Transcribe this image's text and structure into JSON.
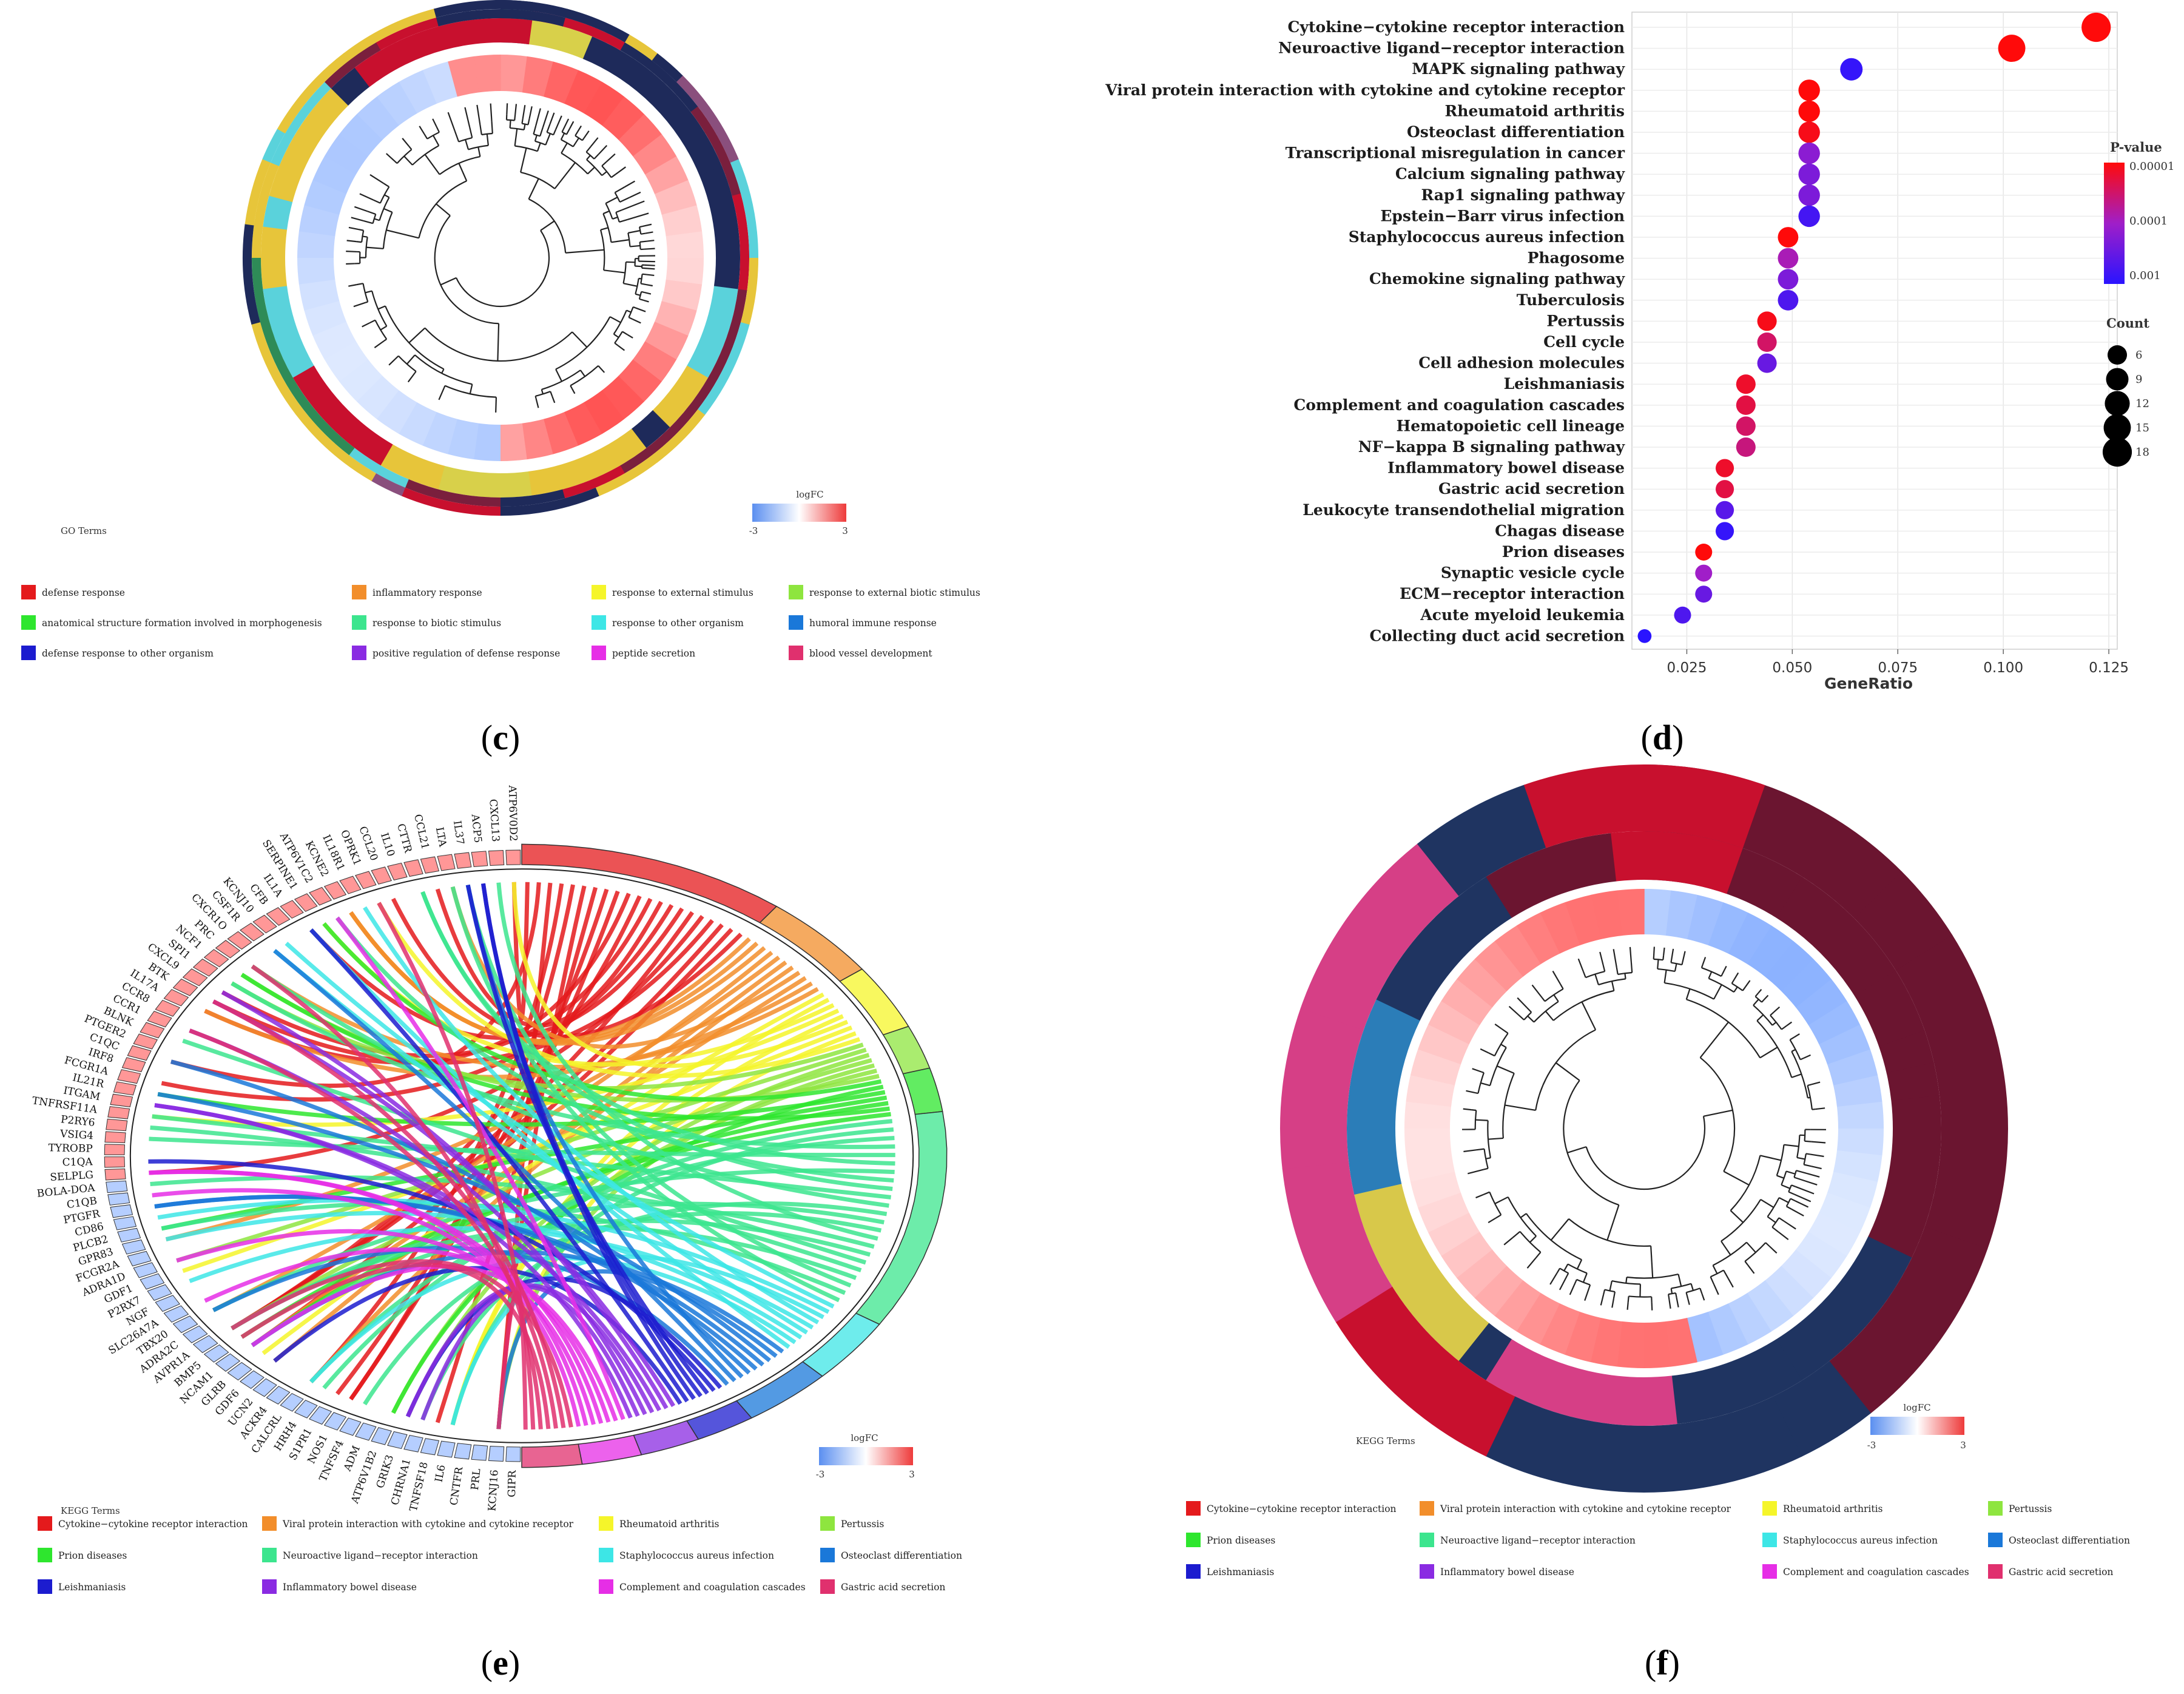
{
  "panels": {
    "c": {
      "label_open": "(",
      "letter": "c",
      "label_close": ")"
    },
    "d": {
      "label_open": "(",
      "letter": "d",
      "label_close": ")"
    },
    "e": {
      "label_open": "(",
      "letter": "e",
      "label_close": ")"
    },
    "f": {
      "label_open": "(",
      "letter": "f",
      "label_close": ")"
    }
  },
  "panel_c": {
    "terms_title": "GO Terms",
    "logfc_title": "logFC",
    "logfc_min": "-3",
    "logfc_max": "3",
    "legend": [
      {
        "label": "defense response",
        "color": "#e41a1c"
      },
      {
        "label": "inflammatory response",
        "color": "#f28e2b"
      },
      {
        "label": "response to external stimulus",
        "color": "#f5f52a"
      },
      {
        "label": "response to external biotic stimulus",
        "color": "#8ee53f"
      },
      {
        "label": "anatomical structure formation involved in morphogenesis",
        "color": "#2ee62e"
      },
      {
        "label": "response to biotic stimulus",
        "color": "#3ce58e"
      },
      {
        "label": "response to other organism",
        "color": "#3de6e6"
      },
      {
        "label": "humoral immune response",
        "color": "#1a78d9"
      },
      {
        "label": "defense response to other organism",
        "color": "#1c1ccf"
      },
      {
        "label": "positive regulation of defense response",
        "color": "#8a2be2"
      },
      {
        "label": "peptide secretion",
        "color": "#e62ee6"
      },
      {
        "label": "blood vessel development",
        "color": "#e0306e"
      }
    ]
  },
  "panel_e": {
    "terms_title": "KEGG Terms",
    "logfc_title": "logFC",
    "logfc_min": "-3",
    "logfc_max": "3",
    "genes": [
      "ATP6V0D2",
      "CXCL13",
      "ACP5",
      "IL37",
      "LTA",
      "CCL21",
      "CTTR",
      "IL10",
      "CCL20",
      "OPRK1",
      "IL18R1",
      "KCNE2",
      "ATP6V1C2",
      "SERPINE1",
      "IL1A",
      "CFB",
      "KCNJ10",
      "CSF1R",
      "CXCR1O",
      "PRC",
      "NCF1",
      "SPI1",
      "CXCL9",
      "BTK",
      "IL17A",
      "CCR8",
      "CCR1",
      "BLNK",
      "PTGER2",
      "C1QC",
      "IRF8",
      "FCGR1A",
      "IL21R",
      "ITGAM",
      "TNFRSF11A",
      "P2RY6",
      "VSIG4",
      "TYROBP",
      "C1QA",
      "SELPLG",
      "BOLA-DOA",
      "C1QB",
      "PTGFR",
      "CD86",
      "PLCB2",
      "GPR83",
      "FCGR2A",
      "ADRA1D",
      "GDF1",
      "P2RX7",
      "NGF",
      "SLC26A7A",
      "TBX20",
      "ADRA2C",
      "AVPR1A",
      "BMP5",
      "NCAM1",
      "GLRB",
      "GDF6",
      "UCN2",
      "ACKR4",
      "CALCRL",
      "HRH4",
      "S1PR1",
      "NOS1",
      "TNFSF4",
      "ADM",
      "ATP6V1B2",
      "GRIK3",
      "CHRNA1",
      "TNFSF18",
      "IL6",
      "CNTFR",
      "PRL",
      "KCNJ16",
      "GIPR"
    ],
    "legend": [
      {
        "label": "Cytokine−cytokine receptor interaction",
        "color": "#e41a1c"
      },
      {
        "label": "Viral protein interaction with cytokine and cytokine receptor",
        "color": "#f28e2b"
      },
      {
        "label": "Rheumatoid arthritis",
        "color": "#f5f52a"
      },
      {
        "label": "Pertussis",
        "color": "#8ee53f"
      },
      {
        "label": "Prion diseases",
        "color": "#2ee62e"
      },
      {
        "label": "Neuroactive ligand−receptor interaction",
        "color": "#3ce58e"
      },
      {
        "label": "Staphylococcus aureus infection",
        "color": "#3de6e6"
      },
      {
        "label": "Osteoclast differentiation",
        "color": "#1a78d9"
      },
      {
        "label": "Leishmaniasis",
        "color": "#1c1ccf"
      },
      {
        "label": "Inflammatory bowel disease",
        "color": "#8a2be2"
      },
      {
        "label": "Complement and coagulation cascades",
        "color": "#e62ee6"
      },
      {
        "label": "Gastric acid secretion",
        "color": "#e0306e"
      }
    ]
  },
  "panel_f": {
    "terms_title": "KEGG Terms",
    "logfc_title": "logFC",
    "logfc_min": "-3",
    "logfc_max": "3",
    "legend": [
      {
        "label": "Cytokine−cytokine receptor interaction",
        "color": "#e41a1c"
      },
      {
        "label": "Viral protein interaction with cytokine and cytokine receptor",
        "color": "#f28e2b"
      },
      {
        "label": "Rheumatoid arthritis",
        "color": "#f5f52a"
      },
      {
        "label": "Pertussis",
        "color": "#8ee53f"
      },
      {
        "label": "Prion diseases",
        "color": "#2ee62e"
      },
      {
        "label": "Neuroactive ligand−receptor interaction",
        "color": "#3ce58e"
      },
      {
        "label": "Staphylococcus aureus infection",
        "color": "#3de6e6"
      },
      {
        "label": "Osteoclast differentiation",
        "color": "#1a78d9"
      },
      {
        "label": "Leishmaniasis",
        "color": "#1c1ccf"
      },
      {
        "label": "Inflammatory bowel disease",
        "color": "#8a2be2"
      },
      {
        "label": "Complement and coagulation cascades",
        "color": "#e62ee6"
      },
      {
        "label": "Gastric acid secretion",
        "color": "#e0306e"
      }
    ]
  },
  "chart_data": [
    {
      "type": "scatter",
      "panel": "d",
      "title": "",
      "xlabel": "GeneRatio",
      "ylabel": "",
      "xlim": [
        0.012,
        0.127
      ],
      "xticks": [
        "0.025",
        "0.050",
        "0.075",
        "0.100",
        "0.125"
      ],
      "xtick_values": [
        0.025,
        0.05,
        0.075,
        0.1,
        0.125
      ],
      "color_legend_title": "P-value",
      "color_legend_ticks": [
        "0.00001",
        "0.0001",
        "0.001"
      ],
      "size_legend_title": "Count",
      "size_legend_ticks": [
        "6",
        "9",
        "12",
        "15",
        "18"
      ],
      "size_legend_values": [
        6,
        9,
        12,
        15,
        18
      ],
      "points": [
        {
          "term": "Cytokine−cytokine receptor interaction",
          "gene_ratio": 0.122,
          "count": 18,
          "pvalue": 5e-06
        },
        {
          "term": "Neuroactive ligand−receptor interaction",
          "gene_ratio": 0.102,
          "count": 15,
          "pvalue": 8e-06
        },
        {
          "term": "MAPK signaling pathway",
          "gene_ratio": 0.064,
          "count": 9,
          "pvalue": 0.0008
        },
        {
          "term": "Viral protein interaction with cytokine and cytokine receptor",
          "gene_ratio": 0.054,
          "count": 8,
          "pvalue": 1e-05
        },
        {
          "term": "Rheumatoid arthritis",
          "gene_ratio": 0.054,
          "count": 8,
          "pvalue": 1e-05
        },
        {
          "term": "Osteoclast differentiation",
          "gene_ratio": 0.054,
          "count": 8,
          "pvalue": 1.2e-05
        },
        {
          "term": "Transcriptional misregulation in cancer",
          "gene_ratio": 0.054,
          "count": 8,
          "pvalue": 0.00015
        },
        {
          "term": "Calcium signaling pathway",
          "gene_ratio": 0.054,
          "count": 8,
          "pvalue": 0.0002
        },
        {
          "term": "Rap1 signaling pathway",
          "gene_ratio": 0.054,
          "count": 8,
          "pvalue": 0.0002
        },
        {
          "term": "Epstein−Barr virus infection",
          "gene_ratio": 0.054,
          "count": 8,
          "pvalue": 0.0006
        },
        {
          "term": "Staphylococcus aureus infection",
          "gene_ratio": 0.049,
          "count": 7,
          "pvalue": 1e-05
        },
        {
          "term": "Phagosome",
          "gene_ratio": 0.049,
          "count": 7,
          "pvalue": 8e-05
        },
        {
          "term": "Chemokine signaling pathway",
          "gene_ratio": 0.049,
          "count": 7,
          "pvalue": 0.0002
        },
        {
          "term": "Tuberculosis",
          "gene_ratio": 0.049,
          "count": 7,
          "pvalue": 0.0005
        },
        {
          "term": "Pertussis",
          "gene_ratio": 0.044,
          "count": 6,
          "pvalue": 1.2e-05
        },
        {
          "term": "Cell cycle",
          "gene_ratio": 0.044,
          "count": 6,
          "pvalue": 3e-05
        },
        {
          "term": "Cell adhesion molecules",
          "gene_ratio": 0.044,
          "count": 6,
          "pvalue": 0.0003
        },
        {
          "term": "Leishmaniasis",
          "gene_ratio": 0.039,
          "count": 6,
          "pvalue": 1.5e-05
        },
        {
          "term": "Complement and coagulation cascades",
          "gene_ratio": 0.039,
          "count": 6,
          "pvalue": 2e-05
        },
        {
          "term": "Hematopoietic cell lineage",
          "gene_ratio": 0.039,
          "count": 6,
          "pvalue": 3e-05
        },
        {
          "term": "NF−kappa B signaling pathway",
          "gene_ratio": 0.039,
          "count": 6,
          "pvalue": 4e-05
        },
        {
          "term": "Inflammatory bowel disease",
          "gene_ratio": 0.034,
          "count": 5,
          "pvalue": 1.5e-05
        },
        {
          "term": "Gastric acid secretion",
          "gene_ratio": 0.034,
          "count": 5,
          "pvalue": 2e-05
        },
        {
          "term": "Leukocyte transendothelial migration",
          "gene_ratio": 0.034,
          "count": 5,
          "pvalue": 0.0004
        },
        {
          "term": "Chagas disease",
          "gene_ratio": 0.034,
          "count": 5,
          "pvalue": 0.0008
        },
        {
          "term": "Prion diseases",
          "gene_ratio": 0.029,
          "count": 4,
          "pvalue": 1e-05
        },
        {
          "term": "Synaptic vesicle cycle",
          "gene_ratio": 0.029,
          "count": 4,
          "pvalue": 0.0001
        },
        {
          "term": "ECM−receptor interaction",
          "gene_ratio": 0.029,
          "count": 4,
          "pvalue": 0.0003
        },
        {
          "term": "Acute myeloid leukemia",
          "gene_ratio": 0.024,
          "count": 4,
          "pvalue": 0.0005
        },
        {
          "term": "Collecting duct acid secretion",
          "gene_ratio": 0.015,
          "count": 2,
          "pvalue": 0.001
        }
      ]
    }
  ]
}
